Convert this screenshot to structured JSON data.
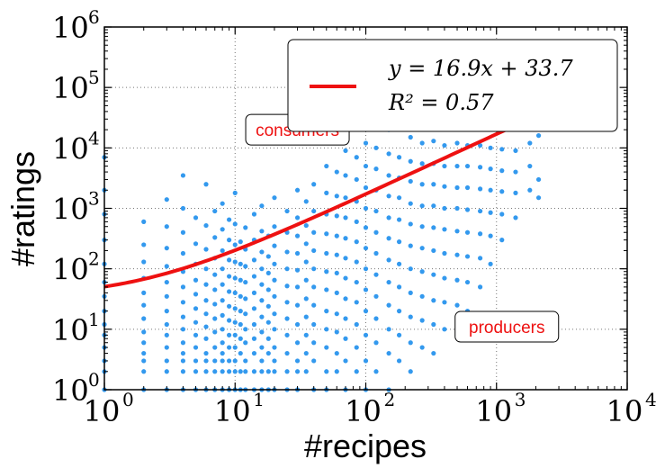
{
  "chart_data": {
    "type": "scatter",
    "xlabel": "#recipes",
    "ylabel": "#ratings",
    "xscale": "log",
    "yscale": "log",
    "xlim": [
      1,
      10000
    ],
    "ylim": [
      1,
      1000000
    ],
    "grid": true,
    "x_ticks": [
      {
        "base": "10",
        "exp": "0"
      },
      {
        "base": "10",
        "exp": "1"
      },
      {
        "base": "10",
        "exp": "2"
      },
      {
        "base": "10",
        "exp": "3"
      },
      {
        "base": "10",
        "exp": "4"
      }
    ],
    "y_ticks": [
      {
        "base": "10",
        "exp": "0"
      },
      {
        "base": "10",
        "exp": "1"
      },
      {
        "base": "10",
        "exp": "2"
      },
      {
        "base": "10",
        "exp": "3"
      },
      {
        "base": "10",
        "exp": "4"
      },
      {
        "base": "10",
        "exp": "5"
      },
      {
        "base": "10",
        "exp": "6"
      }
    ],
    "scatter_color": "#3399ee",
    "fit_color": "#ee1111",
    "fit": {
      "slope": 16.9,
      "intercept": 33.7,
      "equation": "y = 16.9x + 33.7",
      "r2_label": "R² = 0.57"
    },
    "legend_position": "top-right",
    "annotations": [
      {
        "text": "consumers",
        "x": 30,
        "y": 20000
      },
      {
        "text": "producers",
        "x": 1200,
        "y": 11
      }
    ],
    "sample_points": [
      [
        1,
        1
      ],
      [
        1,
        2
      ],
      [
        1,
        3
      ],
      [
        1,
        5
      ],
      [
        1,
        8
      ],
      [
        1,
        12
      ],
      [
        1,
        20
      ],
      [
        1,
        35
      ],
      [
        1,
        60
      ],
      [
        1,
        120
      ],
      [
        1,
        300
      ],
      [
        1,
        800
      ],
      [
        1,
        2000
      ],
      [
        1,
        7000
      ],
      [
        2,
        1
      ],
      [
        2,
        2
      ],
      [
        2,
        3
      ],
      [
        2,
        4
      ],
      [
        2,
        6
      ],
      [
        2,
        9
      ],
      [
        2,
        15
      ],
      [
        2,
        25
      ],
      [
        2,
        40
      ],
      [
        2,
        70
      ],
      [
        2,
        130
      ],
      [
        2,
        250
      ],
      [
        2,
        600
      ],
      [
        3,
        1
      ],
      [
        3,
        2
      ],
      [
        3,
        3
      ],
      [
        3,
        5
      ],
      [
        3,
        8
      ],
      [
        3,
        12
      ],
      [
        3,
        20
      ],
      [
        3,
        35
      ],
      [
        3,
        60
      ],
      [
        3,
        110
      ],
      [
        3,
        220
      ],
      [
        3,
        500
      ],
      [
        3,
        1400
      ],
      [
        4,
        1
      ],
      [
        4,
        2
      ],
      [
        4,
        3
      ],
      [
        4,
        4
      ],
      [
        4,
        6
      ],
      [
        4,
        10
      ],
      [
        4,
        16
      ],
      [
        4,
        28
      ],
      [
        4,
        50
      ],
      [
        4,
        90
      ],
      [
        4,
        180
      ],
      [
        4,
        400
      ],
      [
        4,
        1000
      ],
      [
        4,
        3500
      ],
      [
        5,
        1
      ],
      [
        5,
        2
      ],
      [
        5,
        3
      ],
      [
        5,
        5
      ],
      [
        5,
        8
      ],
      [
        5,
        13
      ],
      [
        5,
        22
      ],
      [
        5,
        38
      ],
      [
        5,
        65
      ],
      [
        5,
        120
      ],
      [
        5,
        260
      ],
      [
        5,
        700
      ],
      [
        6,
        1
      ],
      [
        6,
        2
      ],
      [
        6,
        3
      ],
      [
        6,
        4
      ],
      [
        6,
        7
      ],
      [
        6,
        11
      ],
      [
        6,
        18
      ],
      [
        6,
        30
      ],
      [
        6,
        55
      ],
      [
        6,
        100
      ],
      [
        6,
        210
      ],
      [
        6,
        520
      ],
      [
        6,
        2500
      ],
      [
        7,
        1
      ],
      [
        7,
        2
      ],
      [
        7,
        3
      ],
      [
        7,
        5
      ],
      [
        7,
        9
      ],
      [
        7,
        15
      ],
      [
        7,
        26
      ],
      [
        7,
        45
      ],
      [
        7,
        80
      ],
      [
        7,
        150
      ],
      [
        7,
        330
      ],
      [
        7,
        900
      ],
      [
        8,
        1
      ],
      [
        8,
        2
      ],
      [
        8,
        3
      ],
      [
        8,
        4
      ],
      [
        8,
        6
      ],
      [
        8,
        10
      ],
      [
        8,
        17
      ],
      [
        8,
        30
      ],
      [
        8,
        55
      ],
      [
        8,
        100
      ],
      [
        8,
        200
      ],
      [
        8,
        450
      ],
      [
        8,
        1200
      ],
      [
        9,
        1
      ],
      [
        9,
        2
      ],
      [
        9,
        3
      ],
      [
        9,
        5
      ],
      [
        9,
        8
      ],
      [
        9,
        14
      ],
      [
        9,
        24
      ],
      [
        9,
        42
      ],
      [
        9,
        75
      ],
      [
        9,
        140
      ],
      [
        9,
        300
      ],
      [
        9,
        650
      ],
      [
        10,
        1
      ],
      [
        10,
        2
      ],
      [
        10,
        3
      ],
      [
        10,
        5
      ],
      [
        10,
        8
      ],
      [
        10,
        13
      ],
      [
        10,
        22
      ],
      [
        10,
        40
      ],
      [
        10,
        70
      ],
      [
        10,
        130
      ],
      [
        10,
        250
      ],
      [
        10,
        550
      ],
      [
        10,
        1800
      ],
      [
        11,
        1
      ],
      [
        11,
        2
      ],
      [
        11,
        4
      ],
      [
        11,
        7
      ],
      [
        11,
        12
      ],
      [
        11,
        20
      ],
      [
        11,
        35
      ],
      [
        11,
        65
      ],
      [
        11,
        120
      ],
      [
        11,
        280
      ],
      [
        12,
        1
      ],
      [
        12,
        2
      ],
      [
        12,
        3
      ],
      [
        12,
        6
      ],
      [
        12,
        10
      ],
      [
        12,
        18
      ],
      [
        12,
        32
      ],
      [
        12,
        60
      ],
      [
        12,
        110
      ],
      [
        12,
        210
      ],
      [
        12,
        480
      ],
      [
        14,
        1
      ],
      [
        14,
        2
      ],
      [
        14,
        4
      ],
      [
        14,
        7
      ],
      [
        14,
        12
      ],
      [
        14,
        22
      ],
      [
        14,
        40
      ],
      [
        14,
        75
      ],
      [
        14,
        140
      ],
      [
        14,
        300
      ],
      [
        14,
        800
      ],
      [
        16,
        1
      ],
      [
        16,
        2
      ],
      [
        16,
        3
      ],
      [
        16,
        5
      ],
      [
        16,
        9
      ],
      [
        16,
        16
      ],
      [
        16,
        30
      ],
      [
        16,
        55
      ],
      [
        16,
        100
      ],
      [
        16,
        190
      ],
      [
        16,
        420
      ],
      [
        16,
        1100
      ],
      [
        18,
        1
      ],
      [
        18,
        2
      ],
      [
        18,
        4
      ],
      [
        18,
        7
      ],
      [
        18,
        13
      ],
      [
        18,
        24
      ],
      [
        18,
        45
      ],
      [
        18,
        85
      ],
      [
        18,
        160
      ],
      [
        18,
        350
      ],
      [
        20,
        1
      ],
      [
        20,
        2
      ],
      [
        20,
        3
      ],
      [
        20,
        5
      ],
      [
        20,
        10
      ],
      [
        20,
        18
      ],
      [
        20,
        35
      ],
      [
        20,
        65
      ],
      [
        20,
        120
      ],
      [
        20,
        240
      ],
      [
        20,
        500
      ],
      [
        20,
        1500
      ],
      [
        25,
        1
      ],
      [
        25,
        2
      ],
      [
        25,
        4
      ],
      [
        25,
        8
      ],
      [
        25,
        15
      ],
      [
        25,
        28
      ],
      [
        25,
        52
      ],
      [
        25,
        100
      ],
      [
        25,
        190
      ],
      [
        25,
        400
      ],
      [
        25,
        900
      ],
      [
        30,
        1
      ],
      [
        30,
        2
      ],
      [
        30,
        3
      ],
      [
        30,
        6
      ],
      [
        30,
        12
      ],
      [
        30,
        25
      ],
      [
        30,
        50
      ],
      [
        30,
        95
      ],
      [
        30,
        180
      ],
      [
        30,
        350
      ],
      [
        30,
        700
      ],
      [
        30,
        2000
      ],
      [
        35,
        2
      ],
      [
        35,
        4
      ],
      [
        35,
        8
      ],
      [
        35,
        16
      ],
      [
        35,
        32
      ],
      [
        35,
        65
      ],
      [
        35,
        130
      ],
      [
        35,
        260
      ],
      [
        35,
        520
      ],
      [
        35,
        1300
      ],
      [
        40,
        1
      ],
      [
        40,
        3
      ],
      [
        40,
        6
      ],
      [
        40,
        12
      ],
      [
        40,
        25
      ],
      [
        40,
        50
      ],
      [
        40,
        100
      ],
      [
        40,
        200
      ],
      [
        40,
        400
      ],
      [
        40,
        900
      ],
      [
        40,
        2500
      ],
      [
        50,
        1
      ],
      [
        50,
        2
      ],
      [
        50,
        5
      ],
      [
        50,
        10
      ],
      [
        50,
        20
      ],
      [
        50,
        45
      ],
      [
        50,
        90
      ],
      [
        50,
        180
      ],
      [
        50,
        380
      ],
      [
        50,
        800
      ],
      [
        50,
        1800
      ],
      [
        50,
        5000
      ],
      [
        60,
        2
      ],
      [
        60,
        4
      ],
      [
        60,
        9
      ],
      [
        60,
        18
      ],
      [
        60,
        40
      ],
      [
        60,
        85
      ],
      [
        60,
        170
      ],
      [
        60,
        350
      ],
      [
        60,
        750
      ],
      [
        60,
        1600
      ],
      [
        60,
        4000
      ],
      [
        70,
        1
      ],
      [
        70,
        3
      ],
      [
        70,
        7
      ],
      [
        70,
        15
      ],
      [
        70,
        32
      ],
      [
        70,
        70
      ],
      [
        70,
        150
      ],
      [
        70,
        320
      ],
      [
        70,
        700
      ],
      [
        70,
        1500
      ],
      [
        70,
        3500
      ],
      [
        70,
        9000
      ],
      [
        85,
        2
      ],
      [
        85,
        5
      ],
      [
        85,
        12
      ],
      [
        85,
        28
      ],
      [
        85,
        60
      ],
      [
        85,
        130
      ],
      [
        85,
        280
      ],
      [
        85,
        600
      ],
      [
        85,
        1300
      ],
      [
        85,
        3000
      ],
      [
        85,
        7000
      ],
      [
        100,
        1
      ],
      [
        100,
        3
      ],
      [
        100,
        8
      ],
      [
        100,
        20
      ],
      [
        100,
        45
      ],
      [
        100,
        100
      ],
      [
        100,
        220
      ],
      [
        100,
        480
      ],
      [
        100,
        1000
      ],
      [
        100,
        2200
      ],
      [
        100,
        5000
      ],
      [
        100,
        12000
      ],
      [
        120,
        2
      ],
      [
        120,
        6
      ],
      [
        120,
        15
      ],
      [
        120,
        35
      ],
      [
        120,
        80
      ],
      [
        120,
        180
      ],
      [
        120,
        400
      ],
      [
        120,
        900
      ],
      [
        120,
        2000
      ],
      [
        120,
        4500
      ],
      [
        120,
        10000
      ],
      [
        150,
        1
      ],
      [
        150,
        4
      ],
      [
        150,
        10
      ],
      [
        150,
        25
      ],
      [
        150,
        60
      ],
      [
        150,
        140
      ],
      [
        150,
        320
      ],
      [
        150,
        700
      ],
      [
        150,
        1600
      ],
      [
        150,
        3500
      ],
      [
        150,
        8000
      ],
      [
        150,
        20000
      ],
      [
        180,
        3
      ],
      [
        180,
        8
      ],
      [
        180,
        20
      ],
      [
        180,
        50
      ],
      [
        180,
        120
      ],
      [
        180,
        280
      ],
      [
        180,
        650
      ],
      [
        180,
        1500
      ],
      [
        180,
        3200
      ],
      [
        180,
        7000
      ],
      [
        220,
        2
      ],
      [
        220,
        6
      ],
      [
        220,
        16
      ],
      [
        220,
        40
      ],
      [
        220,
        100
      ],
      [
        220,
        240
      ],
      [
        220,
        550
      ],
      [
        220,
        1200
      ],
      [
        220,
        2800
      ],
      [
        220,
        6000
      ],
      [
        220,
        15000
      ],
      [
        270,
        5
      ],
      [
        270,
        14
      ],
      [
        270,
        35
      ],
      [
        270,
        90
      ],
      [
        270,
        220
      ],
      [
        270,
        500
      ],
      [
        270,
        1100
      ],
      [
        270,
        2500
      ],
      [
        270,
        5500
      ],
      [
        270,
        12000
      ],
      [
        330,
        4
      ],
      [
        330,
        12
      ],
      [
        330,
        30
      ],
      [
        330,
        80
      ],
      [
        330,
        200
      ],
      [
        330,
        480
      ],
      [
        330,
        1100
      ],
      [
        330,
        2500
      ],
      [
        330,
        5500
      ],
      [
        330,
        13000
      ],
      [
        400,
        10
      ],
      [
        400,
        28
      ],
      [
        400,
        70
      ],
      [
        400,
        180
      ],
      [
        400,
        450
      ],
      [
        400,
        1000
      ],
      [
        400,
        2300
      ],
      [
        400,
        5000
      ],
      [
        400,
        11000
      ],
      [
        500,
        8
      ],
      [
        500,
        25
      ],
      [
        500,
        65
      ],
      [
        500,
        170
      ],
      [
        500,
        420
      ],
      [
        500,
        1000
      ],
      [
        500,
        2200
      ],
      [
        500,
        5000
      ],
      [
        500,
        12000
      ],
      [
        600,
        20
      ],
      [
        600,
        60
      ],
      [
        600,
        160
      ],
      [
        600,
        400
      ],
      [
        600,
        950
      ],
      [
        600,
        2200
      ],
      [
        600,
        5000
      ],
      [
        600,
        11000
      ],
      [
        750,
        50
      ],
      [
        750,
        150
      ],
      [
        750,
        380
      ],
      [
        750,
        900
      ],
      [
        750,
        2100
      ],
      [
        750,
        4800
      ],
      [
        750,
        11000
      ],
      [
        900,
        120
      ],
      [
        900,
        350
      ],
      [
        900,
        850
      ],
      [
        900,
        2000
      ],
      [
        900,
        4500
      ],
      [
        900,
        10000
      ],
      [
        1100,
        300
      ],
      [
        1100,
        800
      ],
      [
        1100,
        1900
      ],
      [
        1100,
        4200
      ],
      [
        1100,
        9500
      ],
      [
        1400,
        700
      ],
      [
        1400,
        1800
      ],
      [
        1400,
        4000
      ],
      [
        1400,
        9000
      ],
      [
        1800,
        2000
      ],
      [
        1800,
        5000
      ],
      [
        1800,
        12000
      ],
      [
        2100,
        1500
      ],
      [
        2100,
        3000
      ],
      [
        2100,
        16000
      ]
    ]
  }
}
